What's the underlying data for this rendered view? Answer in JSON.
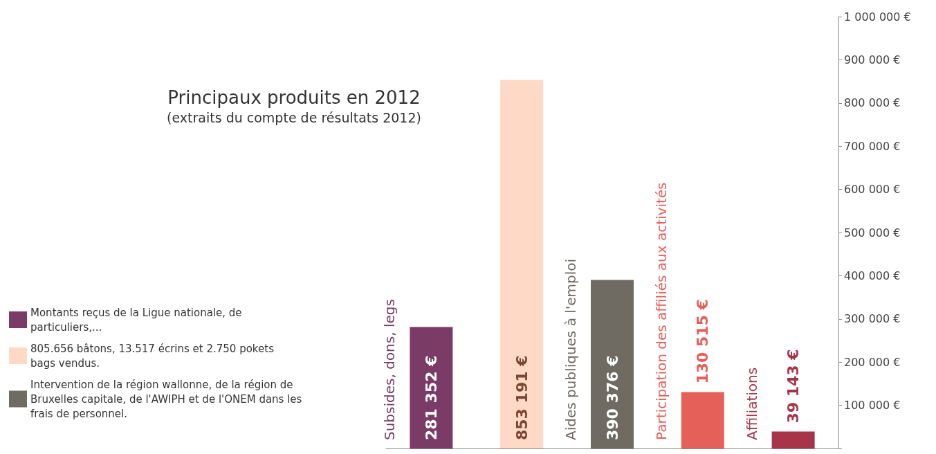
{
  "chart_data": {
    "type": "bar",
    "title": "Principaux produits en 2012",
    "subtitle": "(extraits du compte de résultats 2012)",
    "categories": [
      "Subsides, dons, legs",
      null,
      "Aides publiques à l'emploi",
      "Participation des affiliés aux activités",
      "Affiliations"
    ],
    "series": [
      {
        "name": "Montants reçus de la Ligue nationale, de particuliers,...",
        "color": "#7a3b66",
        "values": [
          281352,
          null,
          null,
          null,
          null
        ],
        "value_labels": [
          "281 352 €",
          null,
          null,
          null,
          null
        ]
      },
      {
        "name": "805.656 bâtons, 13.517 écrins et 2.750 pokets bags vendus.",
        "color": "#fdd9c6",
        "values": [
          null,
          853191,
          null,
          null,
          null
        ],
        "value_labels": [
          null,
          "853 191 €",
          null,
          null,
          null
        ]
      },
      {
        "name": "Intervention de la région wallonne, de la région de Bruxelles capitale, de l'AWIPH et de l'ONEM dans les frais de personnel.",
        "color": "#6f6a62",
        "values": [
          null,
          null,
          390376,
          null,
          null
        ],
        "value_labels": [
          null,
          null,
          "390 376 €",
          null,
          null
        ]
      },
      {
        "color": "#e6605a",
        "values": [
          null,
          null,
          null,
          130515,
          null
        ],
        "value_labels": [
          null,
          null,
          null,
          "130 515 €",
          null
        ]
      },
      {
        "color": "#a8344a",
        "values": [
          null,
          null,
          null,
          null,
          39143
        ],
        "value_labels": [
          null,
          null,
          null,
          null,
          "39 143 €"
        ]
      }
    ],
    "ylim": [
      0,
      1000000
    ],
    "yticks": [
      {
        "value": 0,
        "label": null
      },
      {
        "value": 100000,
        "label": "100 000 €"
      },
      {
        "value": 200000,
        "label": "200 000 €"
      },
      {
        "value": 300000,
        "label": "300 000 €"
      },
      {
        "value": 400000,
        "label": "400 000 €"
      },
      {
        "value": 500000,
        "label": "500 000 €"
      },
      {
        "value": 600000,
        "label": "600 000 €"
      },
      {
        "value": 700000,
        "label": "700 000 €"
      },
      {
        "value": 800000,
        "label": "800 000 €"
      },
      {
        "value": 900000,
        "label": "900 000 €"
      },
      {
        "value": 1000000,
        "label": "1 000 000 €"
      }
    ],
    "grid": false,
    "legend": "left"
  }
}
